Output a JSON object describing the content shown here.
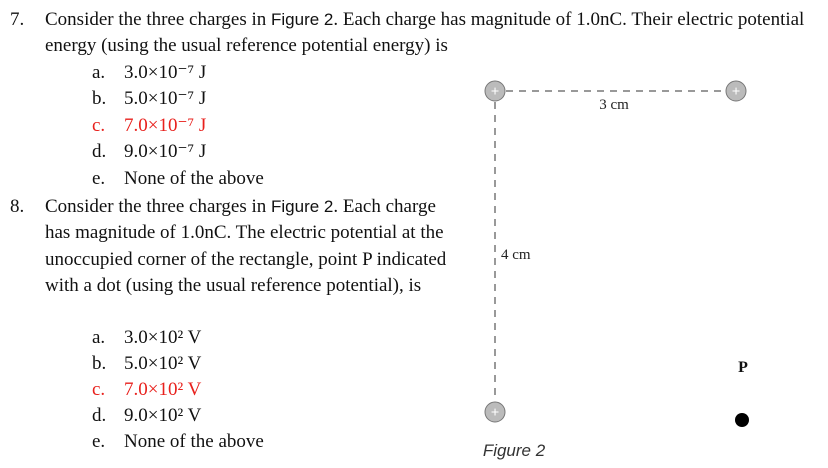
{
  "questions": [
    {
      "number": "7.",
      "text_before": "Consider the three charges in ",
      "figure_ref": "Figure 2",
      "text_after": ". Each charge has magnitude of 1.0nC. Their electric potential energy (using the usual reference potential energy) is",
      "options": [
        {
          "letter": "a.",
          "text": "3.0×10⁻⁷ J"
        },
        {
          "letter": "b.",
          "text": "5.0×10⁻⁷ J"
        },
        {
          "letter": "c.",
          "text": "7.0×10⁻⁷ J"
        },
        {
          "letter": "d.",
          "text": "9.0×10⁻⁷ J"
        },
        {
          "letter": "e.",
          "text": "None of the above"
        }
      ]
    },
    {
      "number": "8.",
      "text_before": "Consider the three charges in ",
      "figure_ref": "Figure 2",
      "text_after": ". Each charge has magnitude of 1.0nC. The electric potential at the unoccupied corner of the rectangle, point P indicated with a dot (using the usual reference potential), is",
      "options": [
        {
          "letter": "a.",
          "text": "3.0×10² V"
        },
        {
          "letter": "b.",
          "text": "5.0×10² V"
        },
        {
          "letter": "c.",
          "text": "7.0×10² V"
        },
        {
          "letter": "d.",
          "text": "9.0×10² V"
        },
        {
          "letter": "e.",
          "text": "None of the above"
        }
      ]
    }
  ],
  "figure": {
    "charge_label": "+",
    "width_label": "3 cm",
    "height_label": "4 cm",
    "point_label": "P",
    "caption": "Figure 2"
  }
}
